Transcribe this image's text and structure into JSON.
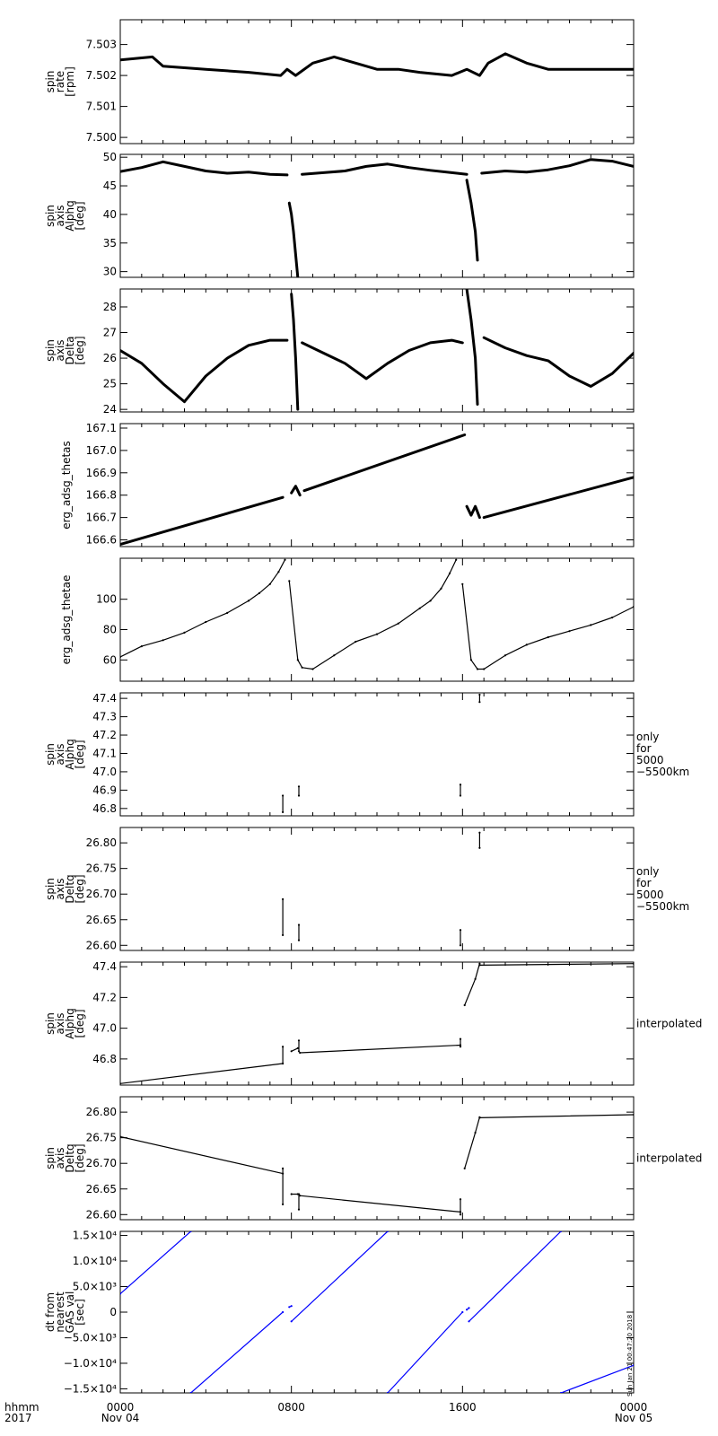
{
  "figure": {
    "time_axis": {
      "label_lines": [
        "hhmm",
        "2017"
      ],
      "ticks": [
        {
          "hours": 0,
          "lines": [
            "0000",
            "Nov 04"
          ]
        },
        {
          "hours": 8,
          "lines": [
            "0800",
            ""
          ]
        },
        {
          "hours": 16,
          "lines": [
            "1600",
            ""
          ]
        },
        {
          "hours": 24,
          "lines": [
            "0000",
            "Nov 05"
          ]
        }
      ],
      "range_hours": [
        0,
        24
      ]
    },
    "stamp": "Sun Jan 21 00:47:20 2018",
    "ink_color": "#000000",
    "series_color": "#0000ff"
  },
  "chart_data": [
    {
      "type": "scatter",
      "ylabel_lines": [
        "spin",
        "rate",
        "[rpm]"
      ],
      "ylim": [
        7.4998,
        7.5038
      ],
      "yticks": [
        {
          "v": 7.5,
          "label": "7.500"
        },
        {
          "v": 7.501,
          "label": "7.501"
        },
        {
          "v": 7.502,
          "label": "7.502"
        },
        {
          "v": 7.503,
          "label": "7.503"
        }
      ],
      "side_note_lines": [],
      "series": [
        {
          "x": [
            0,
            1.5,
            2,
            4,
            6,
            7.5,
            7.8,
            8.2,
            9,
            10,
            11,
            12,
            13,
            14,
            15.5,
            16.2,
            16.8,
            17.2,
            18,
            19,
            20,
            21,
            22,
            23,
            24
          ],
          "y": [
            7.5025,
            7.5026,
            7.5023,
            7.5022,
            7.5021,
            7.502,
            7.5022,
            7.502,
            7.5024,
            7.5026,
            7.5024,
            7.5022,
            7.5022,
            7.5021,
            7.502,
            7.5022,
            7.502,
            7.5024,
            7.5027,
            7.5024,
            7.5022,
            7.5022,
            7.5022,
            7.5022,
            7.5022
          ]
        }
      ]
    },
    {
      "type": "scatter",
      "ylabel_lines": [
        "spin",
        "axis",
        "Alphq",
        "[deg]"
      ],
      "ylim": [
        29,
        50.5
      ],
      "yticks": [
        {
          "v": 30,
          "label": "30"
        },
        {
          "v": 35,
          "label": "35"
        },
        {
          "v": 40,
          "label": "40"
        },
        {
          "v": 45,
          "label": "45"
        },
        {
          "v": 50,
          "label": "50"
        }
      ],
      "side_note_lines": [],
      "series": [
        {
          "x": [
            0,
            1,
            2,
            3,
            4,
            5,
            6,
            7,
            7.8
          ],
          "y": [
            47.5,
            48.2,
            49.2,
            48.4,
            47.6,
            47.2,
            47.4,
            47.0,
            46.9
          ]
        },
        {
          "x": [
            7.9,
            8.0,
            8.1,
            8.2,
            8.3
          ],
          "y": [
            42,
            40,
            37,
            33,
            29
          ]
        },
        {
          "x": [
            8.5,
            9.5,
            10.5,
            11.5,
            12.5,
            13.5,
            14.5,
            15.5,
            16.2
          ],
          "y": [
            47.0,
            47.3,
            47.6,
            48.4,
            48.8,
            48.2,
            47.7,
            47.3,
            47.0
          ]
        },
        {
          "x": [
            16.2,
            16.4,
            16.6,
            16.7
          ],
          "y": [
            46,
            42,
            37,
            32
          ]
        },
        {
          "x": [
            16.9,
            18,
            19,
            20,
            21,
            22,
            23,
            24
          ],
          "y": [
            47.2,
            47.6,
            47.4,
            47.8,
            48.5,
            49.6,
            49.3,
            48.4
          ]
        }
      ]
    },
    {
      "type": "scatter",
      "ylabel_lines": [
        "spin",
        "axis",
        "Delta",
        "[deg]"
      ],
      "ylim": [
        23.9,
        28.7
      ],
      "yticks": [
        {
          "v": 24,
          "label": "24"
        },
        {
          "v": 25,
          "label": "25"
        },
        {
          "v": 26,
          "label": "26"
        },
        {
          "v": 27,
          "label": "27"
        },
        {
          "v": 28,
          "label": "28"
        }
      ],
      "side_note_lines": [],
      "series": [
        {
          "x": [
            0,
            1,
            2,
            3,
            4,
            5,
            6,
            7,
            7.8
          ],
          "y": [
            26.3,
            25.8,
            25.0,
            24.3,
            25.3,
            26.0,
            26.5,
            26.7,
            26.7
          ]
        },
        {
          "x": [
            8.0,
            8.1,
            8.2,
            8.3
          ],
          "y": [
            28.5,
            27.5,
            26.0,
            24.0
          ]
        },
        {
          "x": [
            8.5,
            9.5,
            10.5,
            11.5,
            12.5,
            13.5,
            14.5,
            15.5,
            16.0
          ],
          "y": [
            26.6,
            26.2,
            25.8,
            25.2,
            25.8,
            26.3,
            26.6,
            26.7,
            26.6
          ]
        },
        {
          "x": [
            16.2,
            16.4,
            16.6,
            16.7
          ],
          "y": [
            28.7,
            27.5,
            26.0,
            24.2
          ]
        },
        {
          "x": [
            17.0,
            18,
            19,
            20,
            21,
            22,
            23,
            24
          ],
          "y": [
            26.8,
            26.4,
            26.1,
            25.9,
            25.3,
            24.9,
            25.4,
            26.2
          ]
        }
      ]
    },
    {
      "type": "scatter",
      "ylabel_lines": [
        "erg_adsg_thetas"
      ],
      "ylim": [
        166.57,
        167.12
      ],
      "yticks": [
        {
          "v": 166.6,
          "label": "166.6"
        },
        {
          "v": 166.7,
          "label": "166.7"
        },
        {
          "v": 166.8,
          "label": "166.8"
        },
        {
          "v": 166.9,
          "label": "166.9"
        },
        {
          "v": 167.0,
          "label": "167.0"
        },
        {
          "v": 167.1,
          "label": "167.1"
        }
      ],
      "side_note_lines": [],
      "series": [
        {
          "x": [
            0,
            7.6
          ],
          "y": [
            166.58,
            166.79
          ]
        },
        {
          "x": [
            8.0,
            8.2,
            8.4
          ],
          "y": [
            166.81,
            166.84,
            166.8
          ]
        },
        {
          "x": [
            8.6,
            16.1
          ],
          "y": [
            166.82,
            167.07
          ]
        },
        {
          "x": [
            16.2,
            16.4,
            16.6,
            16.8
          ],
          "y": [
            166.75,
            166.71,
            166.75,
            166.7
          ]
        },
        {
          "x": [
            17.0,
            24
          ],
          "y": [
            166.7,
            166.88
          ]
        }
      ]
    },
    {
      "type": "line",
      "ylabel_lines": [
        "erg_adsg_thetae"
      ],
      "ylim": [
        46,
        127
      ],
      "yticks": [
        {
          "v": 60,
          "label": "60"
        },
        {
          "v": 80,
          "label": "80"
        },
        {
          "v": 100,
          "label": "100"
        }
      ],
      "side_note_lines": [],
      "series": [
        {
          "x": [
            0,
            1,
            2,
            3,
            4,
            5,
            6,
            6.5,
            7,
            7.4,
            7.7
          ],
          "y": [
            62,
            69,
            73,
            78,
            85,
            91,
            99,
            104,
            110,
            118,
            126
          ]
        },
        {
          "x": [
            7.9,
            8.3,
            8.5,
            9,
            10,
            11,
            12,
            13,
            14,
            14.5,
            15,
            15.4,
            15.7
          ],
          "y": [
            112,
            60,
            55,
            54,
            63,
            72,
            77,
            84,
            94,
            99,
            107,
            117,
            126
          ]
        },
        {
          "x": [
            16.0,
            16.4,
            16.7,
            17,
            18,
            19,
            20,
            21,
            22,
            23,
            24
          ],
          "y": [
            110,
            60,
            54,
            54,
            63,
            70,
            75,
            79,
            83,
            88,
            95
          ]
        }
      ]
    },
    {
      "type": "scatter",
      "ylabel_lines": [
        "spin",
        "axis",
        "Alphq",
        "[deg]"
      ],
      "ylim": [
        46.76,
        47.43
      ],
      "yticks": [
        {
          "v": 46.8,
          "label": "46.8"
        },
        {
          "v": 46.9,
          "label": "46.9"
        },
        {
          "v": 47.0,
          "label": "47.0"
        },
        {
          "v": 47.1,
          "label": "47.1"
        },
        {
          "v": 47.2,
          "label": "47.2"
        },
        {
          "v": 47.3,
          "label": "47.3"
        },
        {
          "v": 47.4,
          "label": "47.4"
        }
      ],
      "side_note_lines": [
        "only",
        "for",
        "5000",
        "−5500km"
      ],
      "series": [
        {
          "x": [
            7.6,
            7.6
          ],
          "y": [
            46.78,
            46.87
          ]
        },
        {
          "x": [
            8.35,
            8.35
          ],
          "y": [
            46.87,
            46.92
          ]
        },
        {
          "x": [
            15.9,
            15.9
          ],
          "y": [
            46.87,
            46.93
          ]
        },
        {
          "x": [
            16.8,
            16.8
          ],
          "y": [
            47.38,
            47.42
          ]
        }
      ]
    },
    {
      "type": "scatter",
      "ylabel_lines": [
        "spin",
        "axis",
        "Deltq",
        "[deg]"
      ],
      "ylim": [
        26.59,
        26.83
      ],
      "yticks": [
        {
          "v": 26.6,
          "label": "26.60"
        },
        {
          "v": 26.65,
          "label": "26.65"
        },
        {
          "v": 26.7,
          "label": "26.70"
        },
        {
          "v": 26.75,
          "label": "26.75"
        },
        {
          "v": 26.8,
          "label": "26.80"
        }
      ],
      "side_note_lines": [
        "only",
        "for",
        "5000",
        "−5500km"
      ],
      "series": [
        {
          "x": [
            7.6,
            7.6
          ],
          "y": [
            26.62,
            26.69
          ]
        },
        {
          "x": [
            8.35,
            8.35
          ],
          "y": [
            26.61,
            26.64
          ]
        },
        {
          "x": [
            15.9,
            15.9
          ],
          "y": [
            26.6,
            26.63
          ]
        },
        {
          "x": [
            16.8,
            16.8
          ],
          "y": [
            26.79,
            26.82
          ]
        }
      ]
    },
    {
      "type": "line",
      "ylabel_lines": [
        "spin",
        "axis",
        "Alphq",
        "[deg]"
      ],
      "ylim": [
        46.63,
        47.43
      ],
      "yticks": [
        {
          "v": 46.8,
          "label": "46.8"
        },
        {
          "v": 47.0,
          "label": "47.0"
        },
        {
          "v": 47.2,
          "label": "47.2"
        },
        {
          "v": 47.4,
          "label": "47.4"
        }
      ],
      "side_note_lines": [
        "interpolated"
      ],
      "series": [
        {
          "x": [
            0,
            7.6
          ],
          "y": [
            46.64,
            46.77
          ]
        },
        {
          "x": [
            7.6,
            7.6
          ],
          "y": [
            46.77,
            46.88
          ]
        },
        {
          "x": [
            8.0,
            8.3
          ],
          "y": [
            46.85,
            46.87
          ]
        },
        {
          "x": [
            8.35,
            8.35
          ],
          "y": [
            46.85,
            46.92
          ]
        },
        {
          "x": [
            8.4,
            15.9
          ],
          "y": [
            46.84,
            46.89
          ]
        },
        {
          "x": [
            15.9,
            15.9
          ],
          "y": [
            46.88,
            46.93
          ]
        },
        {
          "x": [
            16.1,
            16.6,
            16.8
          ],
          "y": [
            47.15,
            47.32,
            47.42
          ]
        },
        {
          "x": [
            16.8,
            24
          ],
          "y": [
            47.41,
            47.42
          ]
        }
      ]
    },
    {
      "type": "line",
      "ylabel_lines": [
        "spin",
        "axis",
        "Deltq",
        "[deg]"
      ],
      "ylim": [
        26.59,
        26.83
      ],
      "yticks": [
        {
          "v": 26.6,
          "label": "26.60"
        },
        {
          "v": 26.65,
          "label": "26.65"
        },
        {
          "v": 26.7,
          "label": "26.70"
        },
        {
          "v": 26.75,
          "label": "26.75"
        },
        {
          "v": 26.8,
          "label": "26.80"
        }
      ],
      "side_note_lines": [
        "interpolated"
      ],
      "series": [
        {
          "x": [
            0,
            7.6
          ],
          "y": [
            26.752,
            26.68
          ]
        },
        {
          "x": [
            7.6,
            7.6
          ],
          "y": [
            26.62,
            26.69
          ]
        },
        {
          "x": [
            8.0,
            8.3
          ],
          "y": [
            26.64,
            26.64
          ]
        },
        {
          "x": [
            8.35,
            8.35
          ],
          "y": [
            26.61,
            26.64
          ]
        },
        {
          "x": [
            8.4,
            15.9
          ],
          "y": [
            26.637,
            26.605
          ]
        },
        {
          "x": [
            15.9,
            15.9
          ],
          "y": [
            26.6,
            26.63
          ]
        },
        {
          "x": [
            16.1,
            16.6,
            16.8
          ],
          "y": [
            26.69,
            26.76,
            26.79
          ]
        },
        {
          "x": [
            16.8,
            24
          ],
          "y": [
            26.789,
            26.795
          ]
        }
      ]
    },
    {
      "type": "line",
      "ylabel_lines": [
        "dt from",
        "nearest",
        "GAS val",
        "[sec]"
      ],
      "ylim": [
        -15800,
        15800
      ],
      "yticks": [
        {
          "v": -15000,
          "label": "−1.5×10⁴"
        },
        {
          "v": -10000,
          "label": "−1.0×10⁴"
        },
        {
          "v": -5000,
          "label": "−5.0×10³"
        },
        {
          "v": 0,
          "label": "0"
        },
        {
          "v": 5000,
          "label": "5.0×10³"
        },
        {
          "v": 10000,
          "label": "1.0×10⁴"
        },
        {
          "v": 15000,
          "label": "1.5×10⁴"
        }
      ],
      "side_note_lines": [],
      "series": [
        {
          "x": [
            0,
            3.3
          ],
          "y": [
            3600,
            15800
          ]
        },
        {
          "x": [
            3.3,
            7.6
          ],
          "y": [
            -15800,
            0
          ]
        },
        {
          "x": [
            7.9,
            8.0
          ],
          "y": [
            1000,
            1200
          ]
        },
        {
          "x": [
            8.0,
            12.5
          ],
          "y": [
            -1800,
            15800
          ]
        },
        {
          "x": [
            12.5,
            16.0
          ],
          "y": [
            -15800,
            0
          ]
        },
        {
          "x": [
            16.2,
            16.3
          ],
          "y": [
            500,
            800
          ]
        },
        {
          "x": [
            16.3,
            20.6
          ],
          "y": [
            -1800,
            15800
          ]
        },
        {
          "x": [
            20.6,
            24
          ],
          "y": [
            -15800,
            -10400
          ]
        }
      ]
    }
  ]
}
